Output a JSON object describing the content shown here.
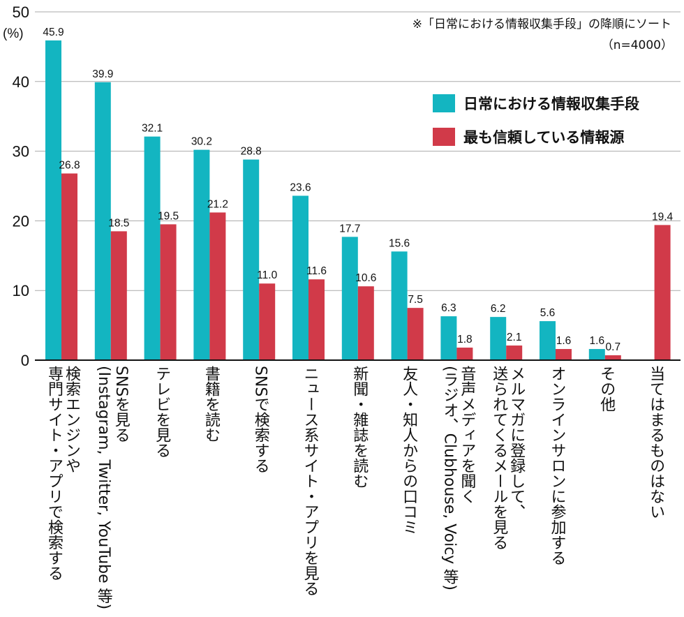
{
  "chart_data": {
    "type": "bar",
    "ylabel": "(%)",
    "ylim": [
      0,
      50
    ],
    "yticks": [
      0,
      10,
      20,
      30,
      40,
      50
    ],
    "grid": true,
    "legend_position": "top-right",
    "note": "※「日常における情報収集手段」の降順にソート",
    "sample": "（n=4000）",
    "categories": [
      "検索エンジンや\n専門サイト・アプリで検索する",
      "SNSを見る\n(Instagram, Twitter, YouTube 等)",
      "テレビを見る",
      "書籍を読む",
      "SNSで検索する",
      "ニュース系サイト・アプリを見る",
      "新聞・雑誌を読む",
      "友人・知人からの口コミ",
      "音声メディアを聞く\n(ラジオ、Clubhouse, Voicy 等)",
      "メルマガに登録して、\n送られてくるメールを見る",
      "オンラインサロンに参加する",
      "その他",
      "当てはまるものはない"
    ],
    "series": [
      {
        "name": "日常における情報収集手段",
        "color": "#13b5c1",
        "values": [
          45.9,
          39.9,
          32.1,
          30.2,
          28.8,
          23.6,
          17.7,
          15.6,
          6.3,
          6.2,
          5.6,
          1.6,
          null
        ]
      },
      {
        "name": "最も信頼している情報源",
        "color": "#d13a49",
        "values": [
          26.8,
          18.5,
          19.5,
          21.2,
          11.0,
          11.6,
          10.6,
          7.5,
          1.8,
          2.1,
          1.6,
          0.7,
          19.4
        ]
      }
    ]
  }
}
